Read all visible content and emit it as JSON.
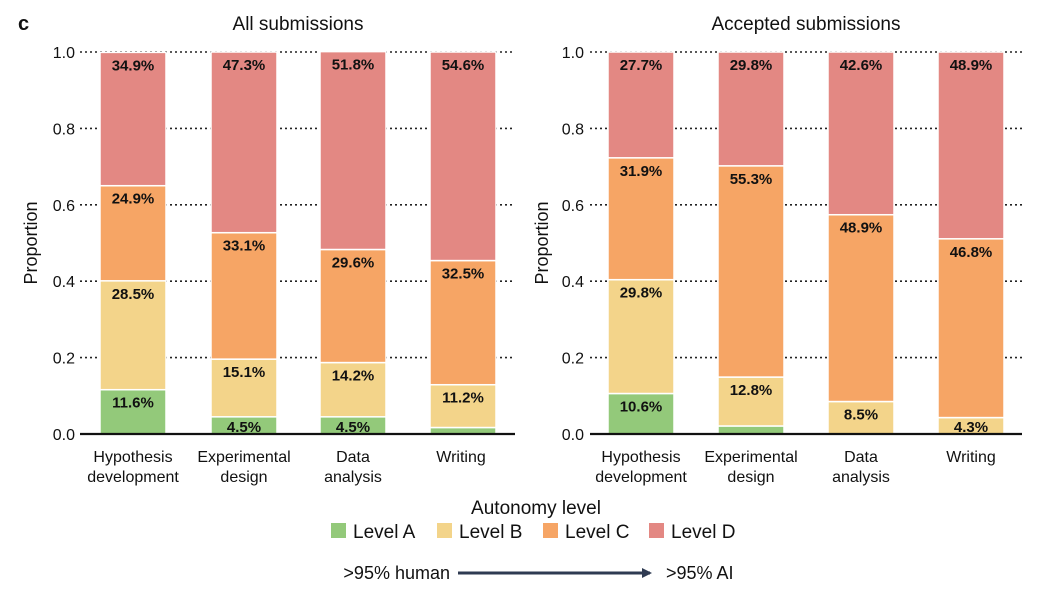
{
  "panel_letter": "c",
  "legend": {
    "title": "Autonomy level",
    "items": [
      {
        "label": "Level A",
        "color": "#93c97a"
      },
      {
        "label": "Level B",
        "color": "#f3d48a"
      },
      {
        "label": "Level C",
        "color": "#f6a565"
      },
      {
        "label": "Level D",
        "color": "#e38883"
      }
    ]
  },
  "scale": {
    "left": ">95% human",
    "right": ">95% AI",
    "arrow_color": "#2f3b52"
  },
  "chart_data": [
    {
      "type": "bar",
      "stacked": true,
      "title": "All submissions",
      "ylabel": "Proportion",
      "xlabel": "",
      "ylim": [
        0,
        1
      ],
      "yticks": [
        "0.0",
        "0.2",
        "0.4",
        "0.6",
        "0.8",
        "1.0"
      ],
      "grid": "horizontal dotted",
      "categories": [
        [
          "Hypothesis",
          "development"
        ],
        [
          "Experimental",
          "design"
        ],
        [
          "Data",
          "analysis"
        ],
        [
          "Writing"
        ]
      ],
      "series": [
        {
          "name": "Level A",
          "values": [
            0.116,
            0.045,
            0.045,
            0.017
          ],
          "labels": [
            "11.6%",
            "4.5%",
            "4.5%",
            ""
          ]
        },
        {
          "name": "Level B",
          "values": [
            0.285,
            0.151,
            0.142,
            0.112
          ],
          "labels": [
            "28.5%",
            "15.1%",
            "14.2%",
            "11.2%"
          ]
        },
        {
          "name": "Level C",
          "values": [
            0.249,
            0.331,
            0.296,
            0.325
          ],
          "labels": [
            "24.9%",
            "33.1%",
            "29.6%",
            "32.5%"
          ]
        },
        {
          "name": "Level D",
          "values": [
            0.349,
            0.473,
            0.518,
            0.546
          ],
          "labels": [
            "34.9%",
            "47.3%",
            "51.8%",
            "54.6%"
          ]
        }
      ]
    },
    {
      "type": "bar",
      "stacked": true,
      "title": "Accepted submissions",
      "ylabel": "Proportion",
      "xlabel": "",
      "ylim": [
        0,
        1
      ],
      "yticks": [
        "0.0",
        "0.2",
        "0.4",
        "0.6",
        "0.8",
        "1.0"
      ],
      "grid": "horizontal dotted",
      "categories": [
        [
          "Hypothesis",
          "development"
        ],
        [
          "Experimental",
          "design"
        ],
        [
          "Data",
          "analysis"
        ],
        [
          "Writing"
        ]
      ],
      "series": [
        {
          "name": "Level A",
          "values": [
            0.106,
            0.021,
            0.0,
            0.0
          ],
          "labels": [
            "10.6%",
            "",
            "",
            ""
          ]
        },
        {
          "name": "Level B",
          "values": [
            0.298,
            0.128,
            0.085,
            0.043
          ],
          "labels": [
            "29.8%",
            "12.8%",
            "8.5%",
            "4.3%"
          ]
        },
        {
          "name": "Level C",
          "values": [
            0.319,
            0.553,
            0.489,
            0.468
          ],
          "labels": [
            "31.9%",
            "55.3%",
            "48.9%",
            "46.8%"
          ]
        },
        {
          "name": "Level D",
          "values": [
            0.277,
            0.298,
            0.426,
            0.489
          ],
          "labels": [
            "27.7%",
            "29.8%",
            "42.6%",
            "48.9%"
          ]
        }
      ]
    }
  ]
}
